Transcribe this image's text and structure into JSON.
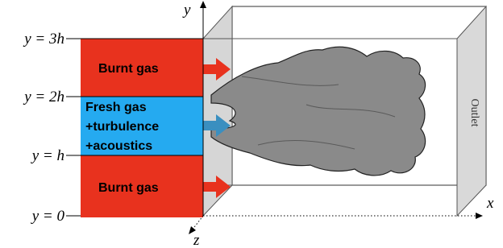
{
  "axis_labels": {
    "y": "y",
    "x": "x",
    "z": "z"
  },
  "levels": [
    "y = 3h",
    "y = 2h",
    "y = h",
    "y = 0"
  ],
  "zones": [
    {
      "lines": [
        "Burnt gas"
      ]
    },
    {
      "lines": [
        "Fresh gas",
        "+turbulence",
        "+acoustics"
      ]
    },
    {
      "lines": [
        "Burnt gas"
      ]
    }
  ],
  "outlet": "Outlet"
}
